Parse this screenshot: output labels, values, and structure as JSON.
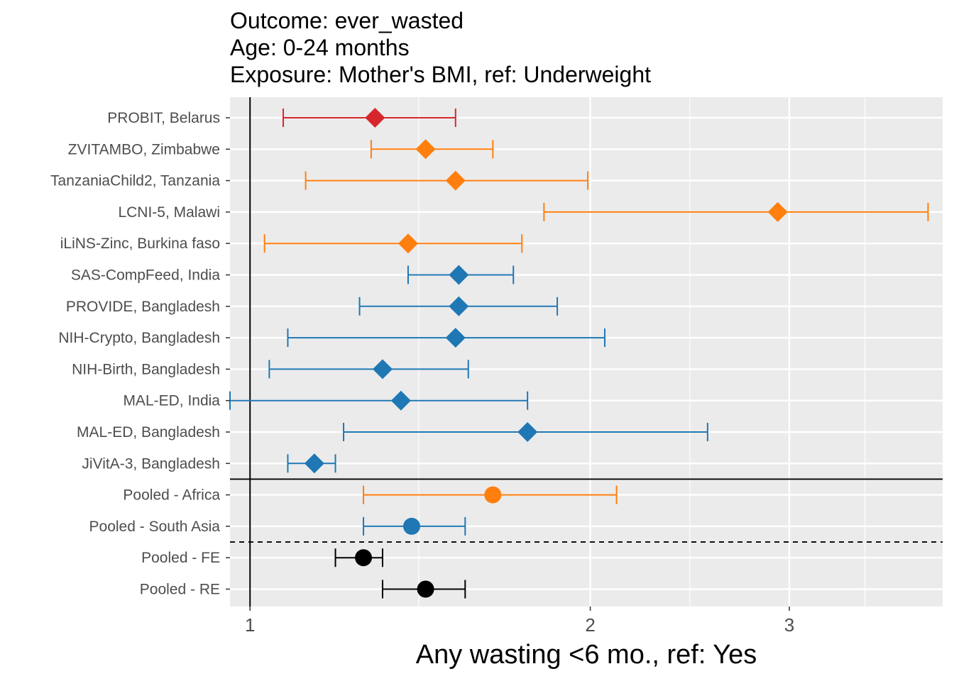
{
  "chart_data": {
    "type": "forest",
    "title_lines": [
      "Outcome: ever_wasted",
      "Age: 0-24 months",
      "Exposure: Mother's BMI, ref: Underweight"
    ],
    "xlabel": "Any wasting  <6 mo., ref: Yes",
    "ylabel": "",
    "x_scale": "log",
    "xlim": [
      0.96,
      4.1
    ],
    "x_ticks": [
      {
        "value": 1,
        "label": "1"
      },
      {
        "value": 2,
        "label": "2"
      },
      {
        "value": 3,
        "label": "3"
      }
    ],
    "x_minor": [
      1.41,
      2.45,
      3.5
    ],
    "reference_line": 1,
    "grid": true,
    "colors": {
      "Europe": "#d7262b",
      "Africa": "#ff7f0e",
      "South Asia": "#1f77b4",
      "Overall": "#000000"
    },
    "rows": [
      {
        "label": "PROBIT, Belarus",
        "estimate": 1.29,
        "lower": 1.07,
        "upper": 1.52,
        "color": "#d7262b",
        "shape": "diamond"
      },
      {
        "label": "ZVITAMBO, Zimbabwe",
        "estimate": 1.43,
        "lower": 1.28,
        "upper": 1.64,
        "color": "#ff7f0e",
        "shape": "diamond"
      },
      {
        "label": "TanzaniaChild2, Tanzania",
        "estimate": 1.52,
        "lower": 1.12,
        "upper": 1.99,
        "color": "#ff7f0e",
        "shape": "diamond"
      },
      {
        "label": "LCNI-5, Malawi",
        "estimate": 2.93,
        "lower": 1.82,
        "upper": 3.98,
        "color": "#ff7f0e",
        "shape": "diamond"
      },
      {
        "label": "iLiNS-Zinc, Burkina faso",
        "estimate": 1.38,
        "lower": 1.03,
        "upper": 1.74,
        "color": "#ff7f0e",
        "shape": "diamond"
      },
      {
        "label": "SAS-CompFeed, India",
        "estimate": 1.53,
        "lower": 1.38,
        "upper": 1.71,
        "color": "#1f77b4",
        "shape": "diamond"
      },
      {
        "label": "PROVIDE, Bangladesh",
        "estimate": 1.53,
        "lower": 1.25,
        "upper": 1.87,
        "color": "#1f77b4",
        "shape": "diamond"
      },
      {
        "label": "NIH-Crypto, Bangladesh",
        "estimate": 1.52,
        "lower": 1.08,
        "upper": 2.06,
        "color": "#1f77b4",
        "shape": "diamond"
      },
      {
        "label": "NIH-Birth, Bangladesh",
        "estimate": 1.31,
        "lower": 1.04,
        "upper": 1.56,
        "color": "#1f77b4",
        "shape": "diamond"
      },
      {
        "label": "MAL-ED, India",
        "estimate": 1.36,
        "lower": 0.96,
        "upper": 1.76,
        "color": "#1f77b4",
        "shape": "diamond"
      },
      {
        "label": "MAL-ED, Bangladesh",
        "estimate": 1.76,
        "lower": 1.21,
        "upper": 2.54,
        "color": "#1f77b4",
        "shape": "diamond"
      },
      {
        "label": "JiVitA-3, Bangladesh",
        "estimate": 1.14,
        "lower": 1.08,
        "upper": 1.19,
        "color": "#1f77b4",
        "shape": "diamond"
      },
      {
        "label": "Pooled - Africa",
        "estimate": 1.64,
        "lower": 1.26,
        "upper": 2.11,
        "color": "#ff7f0e",
        "shape": "circle"
      },
      {
        "label": "Pooled - South Asia",
        "estimate": 1.39,
        "lower": 1.26,
        "upper": 1.55,
        "color": "#1f77b4",
        "shape": "circle"
      },
      {
        "label": "Pooled - FE",
        "estimate": 1.26,
        "lower": 1.19,
        "upper": 1.31,
        "color": "#000000",
        "shape": "circle"
      },
      {
        "label": "Pooled - RE",
        "estimate": 1.43,
        "lower": 1.31,
        "upper": 1.55,
        "color": "#000000",
        "shape": "circle"
      }
    ],
    "separators": [
      {
        "after_row": 11,
        "style": "solid"
      },
      {
        "after_row": 13,
        "style": "dashed"
      }
    ]
  }
}
